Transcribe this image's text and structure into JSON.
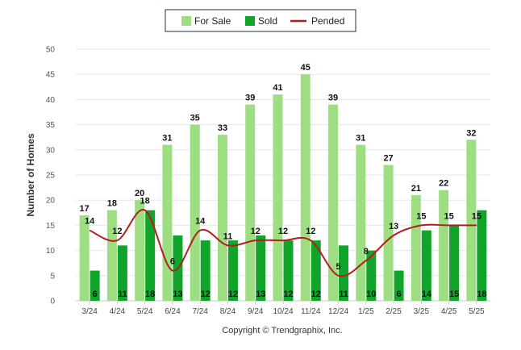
{
  "chart_data": {
    "type": "bar",
    "categories": [
      "3/24",
      "4/24",
      "5/24",
      "6/24",
      "7/24",
      "8/24",
      "9/24",
      "10/24",
      "11/24",
      "12/24",
      "1/25",
      "2/25",
      "3/25",
      "4/25",
      "5/25"
    ],
    "series": [
      {
        "name": "For Sale",
        "type": "bar",
        "color": "#9ede83",
        "values": [
          17,
          18,
          20,
          31,
          35,
          33,
          39,
          41,
          45,
          39,
          31,
          27,
          21,
          22,
          32
        ]
      },
      {
        "name": "Sold",
        "type": "bar",
        "color": "#10a52a",
        "values": [
          6,
          11,
          18,
          13,
          12,
          12,
          13,
          12,
          12,
          11,
          10,
          6,
          14,
          15,
          18
        ]
      },
      {
        "name": "Pended",
        "type": "line",
        "color": "#b71c1c",
        "values": [
          14,
          12,
          18,
          6,
          14,
          11,
          12,
          12,
          12,
          5,
          8,
          13,
          15,
          15,
          15
        ]
      }
    ],
    "ylabel": "Number of Homes",
    "ylim": [
      0,
      50
    ],
    "yticks": [
      0,
      5,
      10,
      15,
      20,
      25,
      30,
      35,
      40,
      45,
      50
    ],
    "grid": true,
    "legend": "top-center"
  },
  "footer": "Copyright © Trendgraphix, Inc."
}
